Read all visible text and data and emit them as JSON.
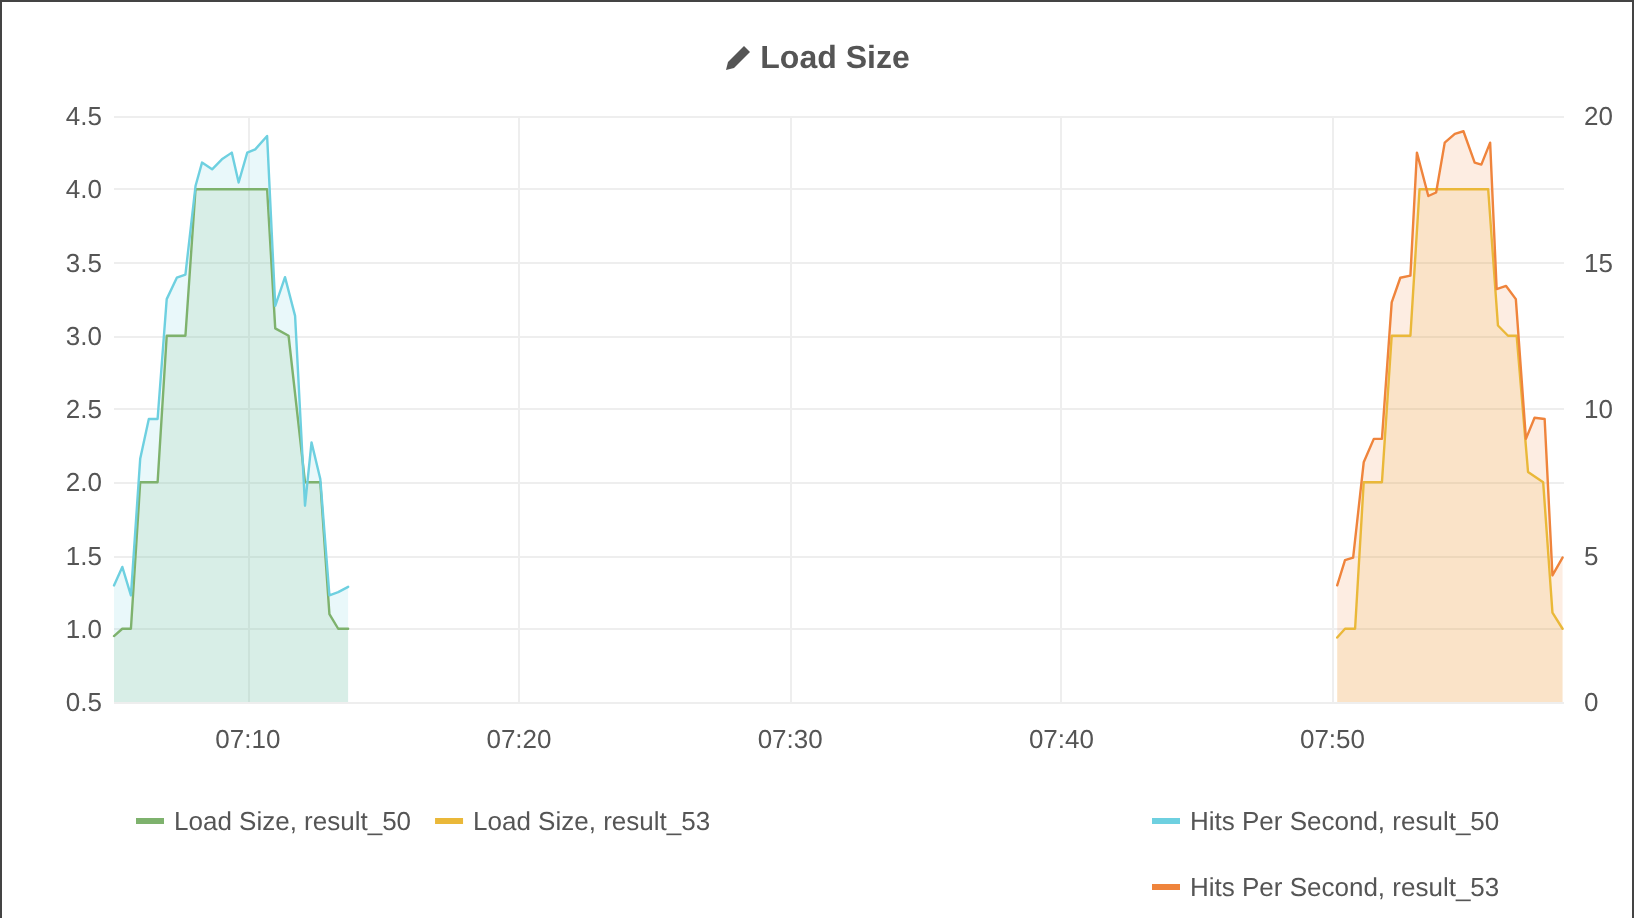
{
  "chart_data": {
    "type": "area",
    "title": "Load Size",
    "xlim": [
      7.0844,
      7.9756
    ],
    "xticks": [
      {
        "value": 7.1667,
        "label": "07:10"
      },
      {
        "value": 7.3333,
        "label": "07:20"
      },
      {
        "value": 7.5,
        "label": "07:30"
      },
      {
        "value": 7.6667,
        "label": "07:40"
      },
      {
        "value": 7.8333,
        "label": "07:50"
      }
    ],
    "ylim": [
      0.5,
      4.5
    ],
    "yticks": [
      0.5,
      {
        "value": 1,
        "label": "1.0"
      },
      1.5,
      {
        "value": 2,
        "label": "2.0"
      },
      2.5,
      {
        "value": 3,
        "label": "3.0"
      },
      3.5,
      {
        "value": 4,
        "label": "4.0"
      },
      4.5
    ],
    "y2lim": [
      0,
      20
    ],
    "y2ticks": [
      0,
      5,
      10,
      15,
      20
    ],
    "grid": true,
    "legend": "bottom",
    "marker": "none",
    "line_style": "solid",
    "series": [
      {
        "name": "Load Size, result_50",
        "color": "#7eb26d",
        "x": [
          7.0844,
          7.0895,
          7.0948,
          7.1005,
          7.1112,
          7.1168,
          7.1283,
          7.1345,
          7.1785,
          7.1835,
          7.1917,
          7.2018,
          7.2112,
          7.2168,
          7.2222,
          7.2283
        ],
        "values": [
          0.95,
          1.0,
          1.0,
          2.0,
          2.0,
          3.0,
          3.0,
          4.0,
          4.0,
          3.05,
          3.0,
          2.0,
          2.0,
          1.1,
          1.0,
          1.0
        ]
      },
      {
        "name": "Load Size, result_53",
        "color": "#eab839",
        "x": [
          7.8362,
          7.841,
          7.8472,
          7.8525,
          7.8637,
          7.8697,
          7.8812,
          7.8868,
          7.929,
          7.935,
          7.9412,
          7.9465,
          7.9535,
          7.9628,
          7.9685,
          7.9747
        ],
        "values": [
          0.94,
          1.0,
          1.0,
          2.0,
          2.0,
          3.0,
          3.0,
          4.0,
          4.0,
          3.07,
          3.0,
          3.0,
          2.07,
          2.0,
          1.11,
          1.0
        ]
      },
      {
        "name": "Hits Per Second, result_50",
        "color": "#6ed0e0",
        "axis": "y2",
        "x": [
          7.0844,
          7.0895,
          7.0948,
          7.1005,
          7.1058,
          7.1112,
          7.1168,
          7.123,
          7.1283,
          7.1345,
          7.1385,
          7.1447,
          7.1507,
          7.1568,
          7.161,
          7.1663,
          7.1712,
          7.1785,
          7.1835,
          7.1895,
          7.1957,
          7.2018,
          7.2058,
          7.2112,
          7.2168,
          7.2222,
          7.2283
        ],
        "values": [
          3.98,
          4.61,
          3.64,
          8.3,
          9.66,
          9.66,
          13.75,
          14.48,
          14.59,
          17.61,
          18.41,
          18.18,
          18.52,
          18.75,
          17.73,
          18.75,
          18.86,
          19.32,
          13.52,
          14.5,
          13.18,
          6.7,
          8.86,
          7.61,
          3.64,
          3.75,
          3.93
        ]
      },
      {
        "name": "Hits Per Second, result_53",
        "color": "#ef843c",
        "axis": "y2",
        "x": [
          7.8362,
          7.841,
          7.846,
          7.8525,
          7.8587,
          7.8637,
          7.8697,
          7.875,
          7.8812,
          7.8852,
          7.8922,
          7.897,
          7.9023,
          7.9085,
          7.9138,
          7.9207,
          7.9248,
          7.9302,
          7.9342,
          7.94,
          7.946,
          7.9522,
          7.9575,
          7.9637,
          7.9685,
          7.9747
        ],
        "values": [
          3.98,
          4.84,
          4.93,
          8.18,
          8.98,
          8.98,
          13.64,
          14.48,
          14.55,
          18.75,
          17.27,
          17.39,
          19.09,
          19.39,
          19.48,
          18.41,
          18.34,
          19.09,
          14.09,
          14.2,
          13.75,
          8.98,
          9.7,
          9.66,
          4.32,
          4.93
        ]
      }
    ]
  }
}
